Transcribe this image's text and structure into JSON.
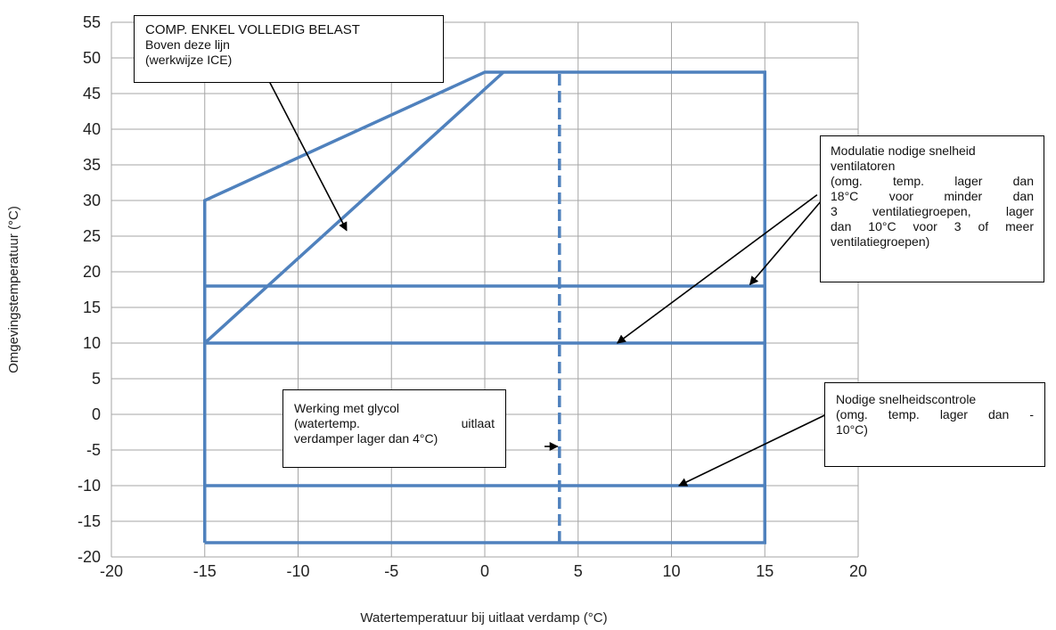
{
  "chart_data": {
    "type": "line",
    "title": "",
    "xlabel": "Watertemperatuur bij uitlaat verdamp (°C)",
    "ylabel": "Omgevingstemperatuur (°C)",
    "xlim": [
      -20,
      20
    ],
    "ylim": [
      -20,
      55
    ],
    "xticks": [
      -20,
      -15,
      -10,
      -5,
      0,
      5,
      10,
      15,
      20
    ],
    "yticks": [
      -20,
      -15,
      -10,
      -5,
      0,
      5,
      10,
      15,
      20,
      25,
      30,
      35,
      40,
      45,
      50,
      55
    ],
    "grid": true,
    "line_color": "#4f81bd",
    "series": [
      {
        "x": [
          -15,
          -15,
          0,
          15,
          15,
          -15
        ],
        "y": [
          -18,
          30,
          48,
          48,
          -18,
          -18
        ],
        "style": "solid"
      },
      {
        "x": [
          -15,
          1
        ],
        "y": [
          10,
          48
        ],
        "style": "solid"
      },
      {
        "x": [
          -15,
          15
        ],
        "y": [
          18,
          18
        ],
        "style": "solid"
      },
      {
        "x": [
          -15,
          15
        ],
        "y": [
          10,
          10
        ],
        "style": "solid"
      },
      {
        "x": [
          -15,
          15
        ],
        "y": [
          -10,
          -10
        ],
        "style": "solid"
      },
      {
        "x": [
          4,
          4
        ],
        "y": [
          -18,
          48
        ],
        "style": "dashed"
      }
    ],
    "annotations": [
      {
        "lines": [
          "COMP. ENKEL VOLLEDIG BELAST",
          "Boven deze lijn",
          "(werkwijze ICE)"
        ],
        "arrows": [
          {
            "from": [
              -11.7,
              47.5
            ],
            "to": [
              -7.4,
              25.8
            ]
          }
        ]
      },
      {
        "lines": [
          "Modulatie nodige snelheid",
          "ventilatoren",
          "(omg. temp. lager dan",
          "18°C voor minder dan",
          "3 ventilatiegroepen, lager",
          "dan 10°C voor 3 of meer",
          "ventilatiegroepen)"
        ],
        "arrows": [
          {
            "from": [
              18.3,
              30.8
            ],
            "to": [
              14.2,
              18.2
            ]
          },
          {
            "from": [
              17.8,
              30.8
            ],
            "to": [
              7.1,
              10
            ]
          }
        ]
      },
      {
        "lines": [
          "Werking met glycol",
          "(watertemp. uitlaat",
          "verdamper lager dan 4°C)"
        ],
        "arrows": [
          {
            "from": [
              3.2,
              -4.5
            ],
            "to": [
              3.9,
              -4.5
            ]
          }
        ]
      },
      {
        "lines": [
          "Nodige snelheidscontrole",
          "(omg. temp. lager dan -",
          "10°C)"
        ],
        "arrows": [
          {
            "from": [
              18.3,
              0
            ],
            "to": [
              10.4,
              -10
            ]
          }
        ]
      }
    ]
  }
}
